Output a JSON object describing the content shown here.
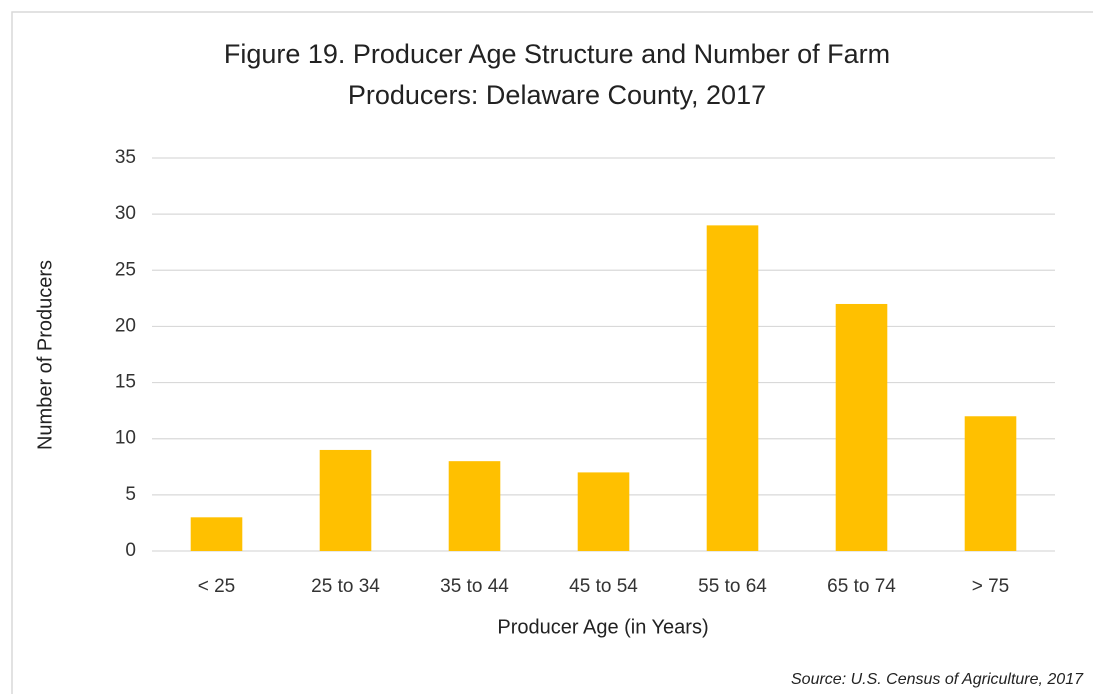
{
  "chart_data": {
    "type": "bar",
    "title": [
      "Figure 19. Producer Age Structure and Number of Farm",
      "Producers: Delaware County, 2017"
    ],
    "categories": [
      "< 25",
      "25 to 34",
      "35 to 44",
      "45 to 54",
      "55 to 64",
      "65 to 74",
      "> 75"
    ],
    "values": [
      3,
      9,
      8,
      7,
      29,
      22,
      12
    ],
    "color": "#ffc000",
    "ylim": [
      0,
      35
    ],
    "yticks": [
      0,
      5,
      10,
      15,
      20,
      25,
      30,
      35
    ],
    "grid": true,
    "y_label": "Number of Producers",
    "x_label": "Producer Age (in Years)",
    "source": "Source: U.S. Census of Agriculture, 2017"
  }
}
